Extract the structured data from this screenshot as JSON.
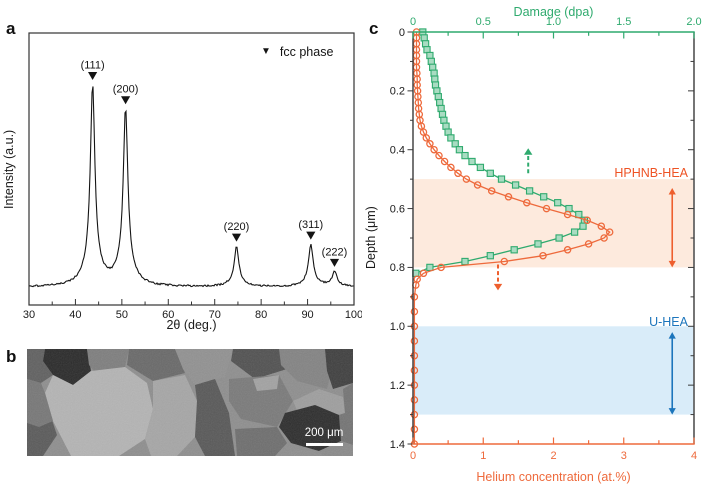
{
  "figure": {
    "panel_labels": {
      "a": "a",
      "b": "b",
      "c": "c"
    }
  },
  "panel_a": {
    "x_axis_title": "2θ (deg.)",
    "y_axis_title": "Intensity (a.u.)",
    "legend_marker": "▼",
    "legend_label": "fcc phase"
  },
  "panel_b": {
    "scale_bar_label": "200 μm"
  },
  "panel_c": {
    "top_axis_title": "Damage (dpa)",
    "bottom_axis_title": "Helium concentration (at.%)",
    "left_axis_title": "Depth (μm)",
    "band_labels": {
      "hphnb": "HPHNB-HEA",
      "u": "U-HEA"
    }
  },
  "chart_data": [
    {
      "type": "line",
      "panel": "a",
      "description": "XRD pattern, single fcc phase",
      "xlabel": "2θ (deg.)",
      "ylabel": "Intensity (a.u.)",
      "x_range": [
        30,
        100
      ],
      "x_major_ticks": [
        30,
        40,
        50,
        60,
        70,
        80,
        90,
        100
      ],
      "x_minor_step": 5,
      "legend": [
        {
          "marker": "filled-down-triangle",
          "label": "fcc phase"
        }
      ],
      "peaks": [
        {
          "hkl": "(111)",
          "two_theta": 43.7,
          "rel_intensity": 1.0
        },
        {
          "hkl": "(200)",
          "two_theta": 50.8,
          "rel_intensity": 0.88
        },
        {
          "hkl": "(220)",
          "two_theta": 74.7,
          "rel_intensity": 0.2
        },
        {
          "hkl": "(311)",
          "two_theta": 90.7,
          "rel_intensity": 0.21
        },
        {
          "hkl": "(222)",
          "two_theta": 95.8,
          "rel_intensity": 0.075
        }
      ]
    },
    {
      "type": "line",
      "panel": "c",
      "orientation": "depth-vertical",
      "top_axis": {
        "label": "Damage (dpa)",
        "range": [
          0,
          2
        ],
        "tick_labels": [
          "0",
          "0.5",
          "1.0",
          "1.5",
          "2.0"
        ],
        "minor_step": 0.25,
        "color": "#2faa6e"
      },
      "bottom_axis": {
        "label": "Helium concentration (at.%)",
        "range": [
          0,
          4
        ],
        "tick_labels": [
          "0",
          "1",
          "2",
          "3",
          "4"
        ],
        "minor_step": 0.5,
        "color": "#ee6a3c"
      },
      "depth_axis": {
        "label": "Depth (μm)",
        "range": [
          0,
          1.4
        ],
        "tick_labels": [
          "0",
          "0.2",
          "0.4",
          "0.6",
          "0.8",
          "1.0",
          "1.2",
          "1.4"
        ],
        "minor_step": 0.1
      },
      "series": [
        {
          "name": "damage",
          "axis": "top",
          "marker": "square",
          "color": "#2faa6e",
          "marker_fill": "#a9dcc2",
          "points": [
            [
              0.0,
              0.07
            ],
            [
              0.02,
              0.08
            ],
            [
              0.04,
              0.09
            ],
            [
              0.06,
              0.1
            ],
            [
              0.08,
              0.12
            ],
            [
              0.1,
              0.13
            ],
            [
              0.12,
              0.14
            ],
            [
              0.14,
              0.15
            ],
            [
              0.16,
              0.155
            ],
            [
              0.18,
              0.16
            ],
            [
              0.2,
              0.17
            ],
            [
              0.22,
              0.18
            ],
            [
              0.24,
              0.19
            ],
            [
              0.26,
              0.2
            ],
            [
              0.28,
              0.21
            ],
            [
              0.3,
              0.22
            ],
            [
              0.32,
              0.235
            ],
            [
              0.34,
              0.25
            ],
            [
              0.36,
              0.27
            ],
            [
              0.38,
              0.3
            ],
            [
              0.4,
              0.33
            ],
            [
              0.42,
              0.37
            ],
            [
              0.44,
              0.42
            ],
            [
              0.46,
              0.48
            ],
            [
              0.48,
              0.55
            ],
            [
              0.5,
              0.63
            ],
            [
              0.52,
              0.73
            ],
            [
              0.54,
              0.83
            ],
            [
              0.56,
              0.93
            ],
            [
              0.58,
              1.03
            ],
            [
              0.6,
              1.11
            ],
            [
              0.62,
              1.18
            ],
            [
              0.64,
              1.22
            ],
            [
              0.66,
              1.21
            ],
            [
              0.68,
              1.15
            ],
            [
              0.7,
              1.04
            ],
            [
              0.72,
              0.89
            ],
            [
              0.74,
              0.72
            ],
            [
              0.76,
              0.55
            ],
            [
              0.78,
              0.37
            ],
            [
              0.8,
              0.12
            ],
            [
              0.82,
              0.02
            ]
          ]
        },
        {
          "name": "helium",
          "axis": "bottom",
          "marker": "open-circle",
          "color": "#ee6a3c",
          "points": [
            [
              0.0,
              0.05
            ],
            [
              0.02,
              0.05
            ],
            [
              0.04,
              0.05
            ],
            [
              0.06,
              0.05
            ],
            [
              0.08,
              0.05
            ],
            [
              0.1,
              0.05
            ],
            [
              0.12,
              0.05
            ],
            [
              0.14,
              0.055
            ],
            [
              0.16,
              0.06
            ],
            [
              0.18,
              0.06
            ],
            [
              0.2,
              0.065
            ],
            [
              0.22,
              0.07
            ],
            [
              0.24,
              0.075
            ],
            [
              0.26,
              0.08
            ],
            [
              0.28,
              0.09
            ],
            [
              0.3,
              0.1
            ],
            [
              0.32,
              0.12
            ],
            [
              0.34,
              0.15
            ],
            [
              0.36,
              0.19
            ],
            [
              0.38,
              0.24
            ],
            [
              0.4,
              0.3
            ],
            [
              0.42,
              0.37
            ],
            [
              0.44,
              0.45
            ],
            [
              0.46,
              0.54
            ],
            [
              0.48,
              0.64
            ],
            [
              0.5,
              0.76
            ],
            [
              0.52,
              0.92
            ],
            [
              0.54,
              1.12
            ],
            [
              0.56,
              1.36
            ],
            [
              0.58,
              1.62
            ],
            [
              0.6,
              1.9
            ],
            [
              0.62,
              2.2
            ],
            [
              0.64,
              2.48
            ],
            [
              0.66,
              2.68
            ],
            [
              0.68,
              2.8
            ],
            [
              0.7,
              2.72
            ],
            [
              0.72,
              2.5
            ],
            [
              0.74,
              2.2
            ],
            [
              0.76,
              1.85
            ],
            [
              0.78,
              1.3
            ],
            [
              0.8,
              0.4
            ],
            [
              0.82,
              0.15
            ],
            [
              0.84,
              0.06
            ],
            [
              0.86,
              0.04
            ],
            [
              0.9,
              0.02
            ],
            [
              0.95,
              0.02
            ],
            [
              1.0,
              0.02
            ],
            [
              1.05,
              0.02
            ],
            [
              1.1,
              0.02
            ],
            [
              1.15,
              0.02
            ],
            [
              1.2,
              0.02
            ],
            [
              1.25,
              0.02
            ],
            [
              1.3,
              0.02
            ],
            [
              1.35,
              0.02
            ],
            [
              1.4,
              0.02
            ]
          ]
        }
      ],
      "bands": [
        {
          "label": "HPHNB-HEA",
          "depth_range": [
            0.5,
            0.8
          ],
          "fill": "#fdeadd",
          "accent": "#ee5f2e"
        },
        {
          "label": "U-HEA",
          "depth_range": [
            1.0,
            1.3
          ],
          "fill": "#d9ecf9",
          "accent": "#1c75bc"
        }
      ],
      "arrows": [
        {
          "kind": "range",
          "axis": "bottom",
          "x_value": 3.69,
          "depth_span": [
            0.53,
            0.8
          ],
          "color": "#ee5f2e"
        },
        {
          "kind": "range",
          "axis": "bottom",
          "x_value": 3.69,
          "depth_span": [
            1.02,
            1.3
          ],
          "color": "#1c75bc"
        },
        {
          "kind": "dashed",
          "axis": "top",
          "x_value": 0.82,
          "depth_span": [
            0.48,
            0.395
          ],
          "direction": "up",
          "color": "#2faa6e"
        },
        {
          "kind": "dashed",
          "axis": "bottom",
          "x_value": 1.21,
          "depth_span": [
            0.79,
            0.878
          ],
          "direction": "down",
          "color": "#ee5f2e"
        }
      ]
    }
  ]
}
